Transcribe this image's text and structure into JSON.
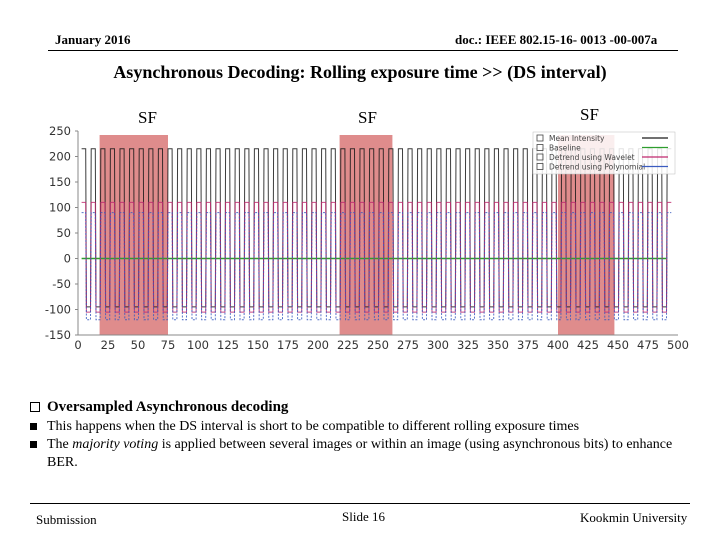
{
  "header": {
    "date": "January 2016",
    "doc_id": "doc.: IEEE 802.15-16- 0013 -00-007a"
  },
  "title": "Asynchronous Decoding: Rolling exposure time >> (DS interval)",
  "sf_labels": [
    "SF",
    "SF",
    "SF"
  ],
  "chart_data": {
    "type": "line",
    "x_ticks": [
      0,
      25,
      50,
      75,
      100,
      125,
      150,
      175,
      200,
      225,
      250,
      275,
      300,
      325,
      350,
      375,
      400,
      425,
      450,
      475,
      500
    ],
    "y_ticks": [
      250,
      200,
      150,
      100,
      50,
      0,
      -50,
      -100,
      -150
    ],
    "xlim": [
      0,
      500
    ],
    "ylim": [
      -150,
      250
    ],
    "highlight_ranges": [
      [
        18,
        75
      ],
      [
        218,
        262
      ],
      [
        400,
        447
      ]
    ],
    "legend": [
      "Mean Intensity",
      "Baseline",
      "Detrend using Wavelet",
      "Detrend using Polynomial"
    ],
    "series_colors": [
      "#1a1a1a",
      "#2e9e2e",
      "#c0286e",
      "#3a5bc0"
    ],
    "highlight_color": "#dc8080",
    "symbol_period": 8,
    "series_levels": [
      {
        "name": "Mean Intensity",
        "high": 215,
        "low": -95
      },
      {
        "name": "Baseline",
        "high": 0,
        "low": 0
      },
      {
        "name": "Detrend using Wavelet",
        "high": 110,
        "low": -105
      },
      {
        "name": "Detrend using Polynomial",
        "high": 90,
        "low": -120
      }
    ]
  },
  "bullets": [
    {
      "marker": "checkbox",
      "text": "Oversampled Asynchronous decoding"
    },
    {
      "marker": "square",
      "text": "This happens when the DS interval is short to be compatible to different rolling exposure times"
    },
    {
      "marker": "square",
      "text_before": "The ",
      "text_em": "majority voting",
      "text_after": " is applied between several images or within an image (using asynchronous bits) to enhance BER."
    }
  ],
  "footer": {
    "left": "Submission",
    "center": "Slide 16",
    "right": "Kookmin University"
  }
}
